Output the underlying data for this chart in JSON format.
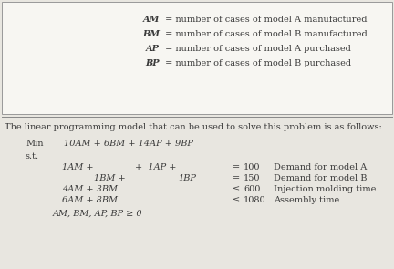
{
  "bg_color": "#e8e6e0",
  "box_color": "#f5f4f0",
  "text_color": "#3a3a3a",
  "figsize": [
    4.32,
    2.95
  ],
  "dpi": 100,
  "top_vars": [
    "AM",
    "BM",
    "AP",
    "BP"
  ],
  "top_descs": [
    " = number of cases of model A manufactured",
    " = number of cases of model B manufactured",
    " = number of cases of model A purchased",
    " = number of cases of model B purchased"
  ],
  "intro_text": "The linear programming model that can be used to solve this problem is as follows:",
  "min_label": "Min",
  "min_expr": "10AM + 6BM + 14AP + 9BP",
  "st_label": "s.t.",
  "nonnegativity": "AM, BM, AP, BP ≥ 0",
  "font_size": 7.0
}
